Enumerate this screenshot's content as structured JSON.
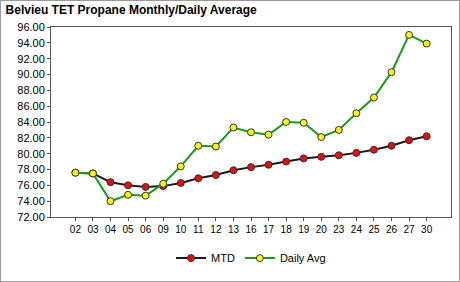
{
  "chart_data": {
    "type": "line",
    "title": "Belvieu TET Propane Monthly/Daily Average",
    "categories": [
      "02",
      "03",
      "04",
      "05",
      "06",
      "09",
      "10",
      "11",
      "12",
      "13",
      "16",
      "17",
      "18",
      "19",
      "20",
      "23",
      "24",
      "25",
      "26",
      "27",
      "30"
    ],
    "series": [
      {
        "name": "MTD",
        "color": "#1a1a1a",
        "marker": "circle",
        "values": [
          77.6,
          77.5,
          76.4,
          76.0,
          75.8,
          75.9,
          76.3,
          76.9,
          77.3,
          77.9,
          78.3,
          78.6,
          79.0,
          79.4,
          79.6,
          79.8,
          80.1,
          80.5,
          81.0,
          81.7,
          82.2
        ]
      },
      {
        "name": "Daily Avg",
        "color": "#1a9a1a",
        "marker": "circle",
        "values": [
          77.6,
          77.5,
          74.0,
          74.8,
          74.7,
          76.2,
          78.4,
          81.0,
          80.9,
          83.3,
          82.7,
          82.4,
          84.0,
          83.9,
          82.1,
          83.0,
          85.1,
          87.1,
          90.3,
          95.0,
          93.9
        ]
      }
    ],
    "ylim": [
      72,
      96
    ],
    "yticks": [
      {
        "value": 72,
        "label": "72.00"
      },
      {
        "value": 74,
        "label": "74.00"
      },
      {
        "value": 76,
        "label": "76.00"
      },
      {
        "value": 78,
        "label": "78.00"
      },
      {
        "value": 80,
        "label": "80.00"
      },
      {
        "value": 82,
        "label": "82.00"
      },
      {
        "value": 84,
        "label": "84.00"
      },
      {
        "value": 86,
        "label": "86.00"
      },
      {
        "value": 88,
        "label": "88.00"
      },
      {
        "value": 90,
        "label": "90.00"
      },
      {
        "value": 92,
        "label": "92.00"
      },
      {
        "value": 94,
        "label": "94.00"
      },
      {
        "value": 96,
        "label": "96.00"
      }
    ],
    "grid": false,
    "legend": "bottom"
  }
}
